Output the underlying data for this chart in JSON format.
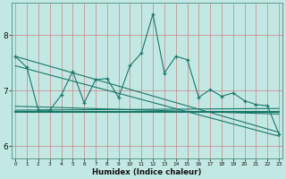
{
  "xlabel": "Humidex (Indice chaleur)",
  "xlim": [
    -0.3,
    23.3
  ],
  "ylim": [
    5.78,
    8.58
  ],
  "bg_color": "#c2e8e4",
  "grid_color_v": "#d08080",
  "grid_color_h": "#d08080",
  "line_color": "#1a7868",
  "xticks": [
    0,
    1,
    2,
    3,
    4,
    5,
    6,
    7,
    8,
    9,
    10,
    11,
    12,
    13,
    14,
    15,
    16,
    17,
    18,
    19,
    20,
    21,
    22,
    23
  ],
  "yticks": [
    6,
    7,
    8
  ],
  "series1_x": [
    0,
    1,
    2,
    3,
    4,
    5,
    6,
    7,
    8,
    9,
    10,
    11,
    12,
    13,
    14,
    15,
    16,
    17,
    18,
    19,
    20,
    21,
    22,
    23
  ],
  "series1_y": [
    7.62,
    7.42,
    6.65,
    6.65,
    6.92,
    7.35,
    6.78,
    7.2,
    7.22,
    6.88,
    7.45,
    7.68,
    8.38,
    7.32,
    7.62,
    7.56,
    6.88,
    7.02,
    6.9,
    6.96,
    6.82,
    6.75,
    6.73,
    6.22
  ],
  "series2_x": [
    0,
    23
  ],
  "series2_y": [
    6.62,
    6.62
  ],
  "series3_x": [
    0,
    23
  ],
  "series3_y": [
    7.62,
    6.25
  ],
  "series4_x": [
    0,
    23
  ],
  "series4_y": [
    6.65,
    6.68
  ],
  "series5_x": [
    0,
    23
  ],
  "series5_y": [
    6.72,
    6.58
  ],
  "series6_x": [
    0,
    23
  ],
  "series6_y": [
    7.45,
    6.18
  ]
}
